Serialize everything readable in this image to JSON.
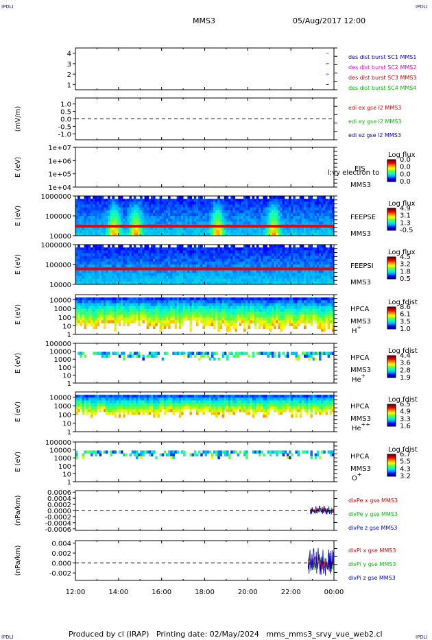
{
  "corner_label": "IPDLI",
  "header": {
    "spacecraft": "MMS3",
    "datetime": "05/Aug/2017 12:00"
  },
  "footer": {
    "produced_by": "Produced by cl (IRAP)   Printing date: 02/May/2024   mms_mms3_srvy_vue_web2.cl"
  },
  "colors": {
    "red": "#dd0000",
    "green": "#00bb00",
    "blue": "#0000cc",
    "magenta": "#dd00dd",
    "colorbar": [
      "#00008f",
      "#0000ff",
      "#00aaff",
      "#00ffcc",
      "#66ff33",
      "#ffff00",
      "#ff8800",
      "#ee0000",
      "#880000"
    ]
  },
  "chart_data": {
    "type": "multi-panel time series",
    "x_axis": {
      "range": [
        "12:00",
        "00:00"
      ],
      "tick_labels": [
        "12:00",
        "14:00",
        "16:00",
        "18:00",
        "20:00",
        "22:00",
        "00:00"
      ]
    },
    "panels": [
      {
        "id": "burst",
        "type": "line",
        "yticks": [
          "4",
          "3",
          "2",
          "1"
        ],
        "ylim": [
          0.5,
          4.5
        ],
        "legend": [
          {
            "text": "des dist burst SC1 MMS1",
            "color": "blue"
          },
          {
            "text": "des dist burst SC2 MMS2",
            "color": "magenta"
          },
          {
            "text": "des dist burst SC3 MMS3",
            "color": "red"
          },
          {
            "text": "des dist burst SC4 MMS4",
            "color": "green"
          }
        ],
        "series": [
          {
            "name": "des dist burst SC1 MMS1",
            "x_hour": 23.7,
            "y": 1
          },
          {
            "name": "des dist burst SC2 MMS2",
            "x_hour": 23.7,
            "y": 2
          },
          {
            "name": "des dist burst SC3 MMS3",
            "x_hour": 23.7,
            "y": 3
          },
          {
            "name": "des dist burst SC4 MMS4",
            "x_hour": 23.7,
            "y": 4
          }
        ]
      },
      {
        "id": "edi",
        "type": "line",
        "ylabel": "(mV/m)",
        "yticks": [
          "1.0",
          "0.5",
          "0.0",
          "-0.5",
          "-1.0"
        ],
        "ylim": [
          -1.4,
          1.4
        ],
        "legend": [
          {
            "text": "edi ex gse l2 MMS3",
            "color": "red"
          },
          {
            "text": "edi ey gse l2 MMS3",
            "color": "green"
          },
          {
            "text": "edi ez gse l2 MMS3",
            "color": "blue"
          }
        ]
      },
      {
        "id": "eis",
        "type": "heatmap",
        "ylabel": "E (eV)",
        "yticks": [
          "1e+07",
          "1e+06",
          "1e+05",
          "1e+04"
        ],
        "ylim": [
          10000,
          10000000
        ],
        "log_y": true,
        "side_labels": [
          "EIS",
          "MMS3"
        ],
        "overlay_label": "l;vy electron to",
        "colorbar": {
          "title": "Log flux",
          "ticks": [
            "0.0",
            "0.0",
            "0.0",
            "0.0"
          ]
        },
        "data": "empty"
      },
      {
        "id": "feepse",
        "type": "heatmap",
        "ylabel": "E (eV)",
        "yticks": [
          "1000000",
          "100000",
          "10000"
        ],
        "ylim": [
          10000,
          1000000
        ],
        "log_y": true,
        "side_labels": [
          "FEEPSE",
          "MMS3"
        ],
        "colorbar": {
          "title": "Log flux",
          "ticks": [
            "4.9",
            "3.1",
            "1.3",
            "-0.5"
          ]
        },
        "features": {
          "low_energy_band_eV": 30000,
          "peak_hours": [
            13.8,
            14.8,
            18.6,
            21.2
          ]
        }
      },
      {
        "id": "feepsi",
        "type": "heatmap",
        "ylabel": "E (eV)",
        "yticks": [
          "1000000",
          "100000",
          "10000"
        ],
        "ylim": [
          10000,
          1000000
        ],
        "log_y": true,
        "side_labels": [
          "FEEPSI",
          "MMS3"
        ],
        "colorbar": {
          "title": "Log flux",
          "ticks": [
            "4.5",
            "3.2",
            "1.8",
            "0.5"
          ]
        },
        "features": {
          "low_energy_band_eV": 60000
        }
      },
      {
        "id": "hpca_h",
        "type": "heatmap",
        "ylabel": "E (eV)",
        "yticks": [
          "10000",
          "1000",
          "100",
          "10",
          "1"
        ],
        "ylim": [
          1,
          40000
        ],
        "log_y": true,
        "side_labels": [
          "HPCA",
          "MMS3"
        ],
        "species": "H",
        "species_sup": "+",
        "colorbar": {
          "title": "Log fdist",
          "ticks": [
            "8.6",
            "6.1",
            "3.5",
            "1.0"
          ]
        }
      },
      {
        "id": "hpca_he1",
        "type": "heatmap",
        "ylabel": "E (eV)",
        "yticks": [
          "100000",
          "10000",
          "1000",
          "100",
          "10",
          "1"
        ],
        "ylim": [
          1,
          100000
        ],
        "log_y": true,
        "side_labels": [
          "HPCA",
          "MMS3"
        ],
        "species": "He",
        "species_sup": "+",
        "colorbar": {
          "title": "Log fdist",
          "ticks": [
            "4.4",
            "3.6",
            "2.8",
            "1.9"
          ]
        }
      },
      {
        "id": "hpca_he2",
        "type": "heatmap",
        "ylabel": "E (eV)",
        "yticks": [
          "10000",
          "1000",
          "100",
          "10",
          "1"
        ],
        "ylim": [
          1,
          40000
        ],
        "log_y": true,
        "side_labels": [
          "HPCA",
          "MMS3"
        ],
        "species": "He",
        "species_sup": "++",
        "colorbar": {
          "title": "Log fdist",
          "ticks": [
            "6.5",
            "4.9",
            "3.3",
            "1.6"
          ]
        }
      },
      {
        "id": "hpca_o",
        "type": "heatmap",
        "ylabel": "E (eV)",
        "yticks": [
          "100000",
          "10000",
          "1000",
          "100",
          "10",
          "1"
        ],
        "ylim": [
          1,
          100000
        ],
        "log_y": true,
        "side_labels": [
          "HPCA",
          "MMS3"
        ],
        "species": "O",
        "species_sup": "+",
        "colorbar": {
          "title": "Log fdist",
          "ticks": [
            "6.7",
            "5.5",
            "4.3",
            "3.2"
          ]
        }
      },
      {
        "id": "divpe",
        "type": "line",
        "ylabel": "(nPa/km)",
        "yticks": [
          "0.0006",
          "0.0004",
          "0.0002",
          "0.0000",
          "-0.0002",
          "-0.0004",
          "-0.0006"
        ],
        "ylim": [
          -0.00065,
          0.00065
        ],
        "legend": [
          {
            "text": "divPe x gse MMS3",
            "color": "red"
          },
          {
            "text": "divPe y gse MMS3",
            "color": "green"
          },
          {
            "text": "divPe z gse MMS3",
            "color": "blue"
          }
        ],
        "activity_start_hour": 22.9
      },
      {
        "id": "divpi",
        "type": "line",
        "ylabel": "(nPa/km)",
        "yticks": [
          "0.004",
          "0.002",
          "0.000",
          "-0.002"
        ],
        "ylim": [
          -0.0035,
          0.0045
        ],
        "legend": [
          {
            "text": "divPi x gse MMS3",
            "color": "red"
          },
          {
            "text": "divPi y gse MMS3",
            "color": "green"
          },
          {
            "text": "divPi z gse MMS3",
            "color": "blue"
          }
        ],
        "activity_start_hour": 22.8
      }
    ]
  }
}
